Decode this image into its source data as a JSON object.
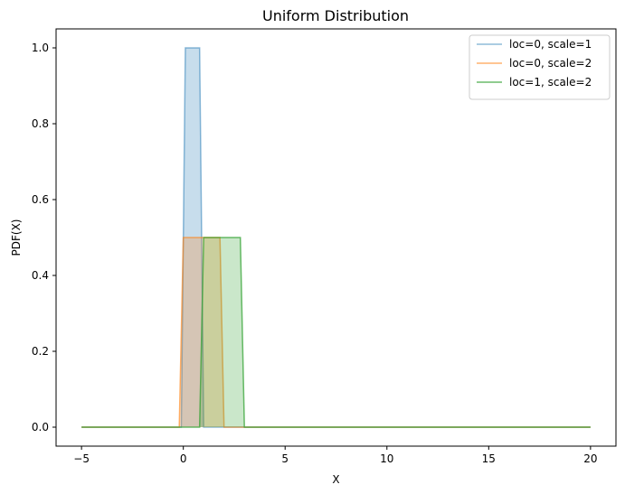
{
  "chart_data": {
    "type": "area",
    "title": "Uniform Distribution",
    "xlabel": "X",
    "ylabel": "PDF(X)",
    "xlim": [
      -6.25,
      21.25
    ],
    "ylim": [
      -0.05,
      1.05
    ],
    "x_ticks": [
      -5,
      0,
      5,
      10,
      15,
      20
    ],
    "x_tick_labels": [
      "−5",
      "0",
      "5",
      "10",
      "15",
      "20"
    ],
    "y_ticks": [
      0.0,
      0.2,
      0.4,
      0.6,
      0.8,
      1.0
    ],
    "y_tick_labels": [
      "0.0",
      "0.2",
      "0.4",
      "0.6",
      "0.8",
      "1.0"
    ],
    "grid": false,
    "legend_position": "top-right",
    "series": [
      {
        "name": "loc=0, scale=1",
        "color": "#1f77b4",
        "x": [
          -5,
          -0.1,
          0.1,
          0.8,
          1.0,
          20
        ],
        "y": [
          0,
          0,
          1.0,
          1.0,
          0,
          0
        ]
      },
      {
        "name": "loc=0, scale=2",
        "color": "#ff7f0e",
        "x": [
          -5,
          -0.2,
          0.0,
          1.8,
          2.0,
          20
        ],
        "y": [
          0,
          0,
          0.5,
          0.5,
          0,
          0
        ]
      },
      {
        "name": "loc=1, scale=2",
        "color": "#2ca02c",
        "x": [
          -5,
          0.8,
          1.0,
          2.8,
          3.0,
          20
        ],
        "y": [
          0,
          0,
          0.5,
          0.5,
          0,
          0
        ]
      }
    ]
  }
}
